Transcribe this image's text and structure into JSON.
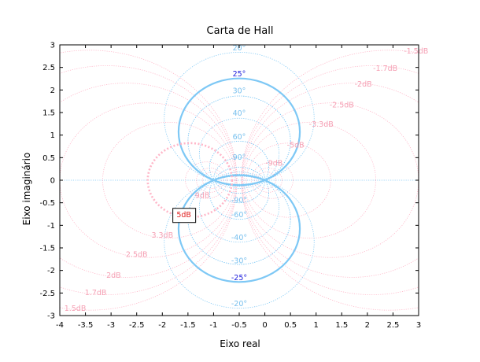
{
  "chart_data": {
    "type": "line",
    "title": "Carta de Hall",
    "xlabel": "Eixo real",
    "ylabel": "Eixo imaginário",
    "xlim": [
      -4,
      3
    ],
    "ylim": [
      -3,
      3
    ],
    "x_ticks": [
      "-4",
      "-3.5",
      "-3",
      "-2.5",
      "-2",
      "-1.5",
      "-1",
      "-0.5",
      "0",
      "0.5",
      "1",
      "1.5",
      "2",
      "2.5",
      "3"
    ],
    "y_ticks": [
      "-3",
      "-2.5",
      "-2",
      "-1.5",
      "-1",
      "-0.5",
      "0",
      "0.5",
      "1",
      "1.5",
      "2",
      "2.5",
      "3"
    ],
    "grid": false,
    "colors": {
      "magnitude": "#ffb6c8",
      "magnitude_label": "#f5a0b4",
      "phase": "#7ec8f5",
      "phase_label": "#78c0ee",
      "highlight_phase_label": "#1a1adc",
      "highlight_mag_label": "#e02020"
    },
    "magnitude_contours_db": [
      {
        "db": -1.5,
        "label": "-1.5dB",
        "at": [
          2.95,
          2.85
        ]
      },
      {
        "db": -1.7,
        "label": "-1.7dB",
        "at": [
          2.35,
          2.47
        ]
      },
      {
        "db": -2,
        "label": "-2dB",
        "at": [
          1.92,
          2.12
        ]
      },
      {
        "db": -2.5,
        "label": "-2.5dB",
        "at": [
          1.5,
          1.66
        ]
      },
      {
        "db": -3.3,
        "label": "-3.3dB",
        "at": [
          1.1,
          1.23
        ]
      },
      {
        "db": -5,
        "label": "-5dB",
        "at": [
          0.6,
          0.77
        ]
      },
      {
        "db": -9,
        "label": "-9dB",
        "at": [
          0.18,
          0.37
        ]
      },
      {
        "db": 9,
        "label": "9dB",
        "at": [
          -1.22,
          -0.35
        ]
      },
      {
        "db": 3.3,
        "label": "3.3dB",
        "at": [
          -2.0,
          -1.23
        ]
      },
      {
        "db": 2.5,
        "label": "2.5dB",
        "at": [
          -2.5,
          -1.66
        ]
      },
      {
        "db": 2,
        "label": "2dB",
        "at": [
          -2.95,
          -2.12
        ]
      },
      {
        "db": 1.7,
        "label": "1.7dB",
        "at": [
          -3.3,
          -2.5
        ]
      },
      {
        "db": 1.5,
        "label": "1.5dB",
        "at": [
          -3.7,
          -2.85
        ]
      }
    ],
    "phase_contours_deg": [
      {
        "deg": 20,
        "label": "20°",
        "at": [
          -0.5,
          2.92
        ]
      },
      {
        "deg": 30,
        "label": "30°",
        "at": [
          -0.5,
          1.97
        ]
      },
      {
        "deg": 40,
        "label": "40°",
        "at": [
          -0.5,
          1.47
        ]
      },
      {
        "deg": 60,
        "label": "60°",
        "at": [
          -0.5,
          0.95
        ]
      },
      {
        "deg": 90,
        "label": "90°",
        "at": [
          -0.5,
          0.5
        ]
      },
      {
        "deg": -90,
        "label": "-90°",
        "at": [
          -0.5,
          -0.45
        ]
      },
      {
        "deg": -60,
        "label": "-60°",
        "at": [
          -0.5,
          -0.78
        ]
      },
      {
        "deg": -40,
        "label": "-40°",
        "at": [
          -0.5,
          -1.28
        ]
      },
      {
        "deg": -30,
        "label": "-30°",
        "at": [
          -0.5,
          -1.8
        ]
      },
      {
        "deg": -20,
        "label": "-20°",
        "at": [
          -0.5,
          -2.75
        ]
      }
    ],
    "highlighted_phase": [
      {
        "deg": 25,
        "label": "25°",
        "at": [
          -0.5,
          2.35
        ]
      },
      {
        "deg": -25,
        "label": "-25°",
        "at": [
          -0.5,
          -2.17
        ]
      }
    ],
    "highlighted_magnitude": {
      "db": 5,
      "label": "5dB",
      "at": [
        -1.58,
        -0.78
      ]
    }
  }
}
